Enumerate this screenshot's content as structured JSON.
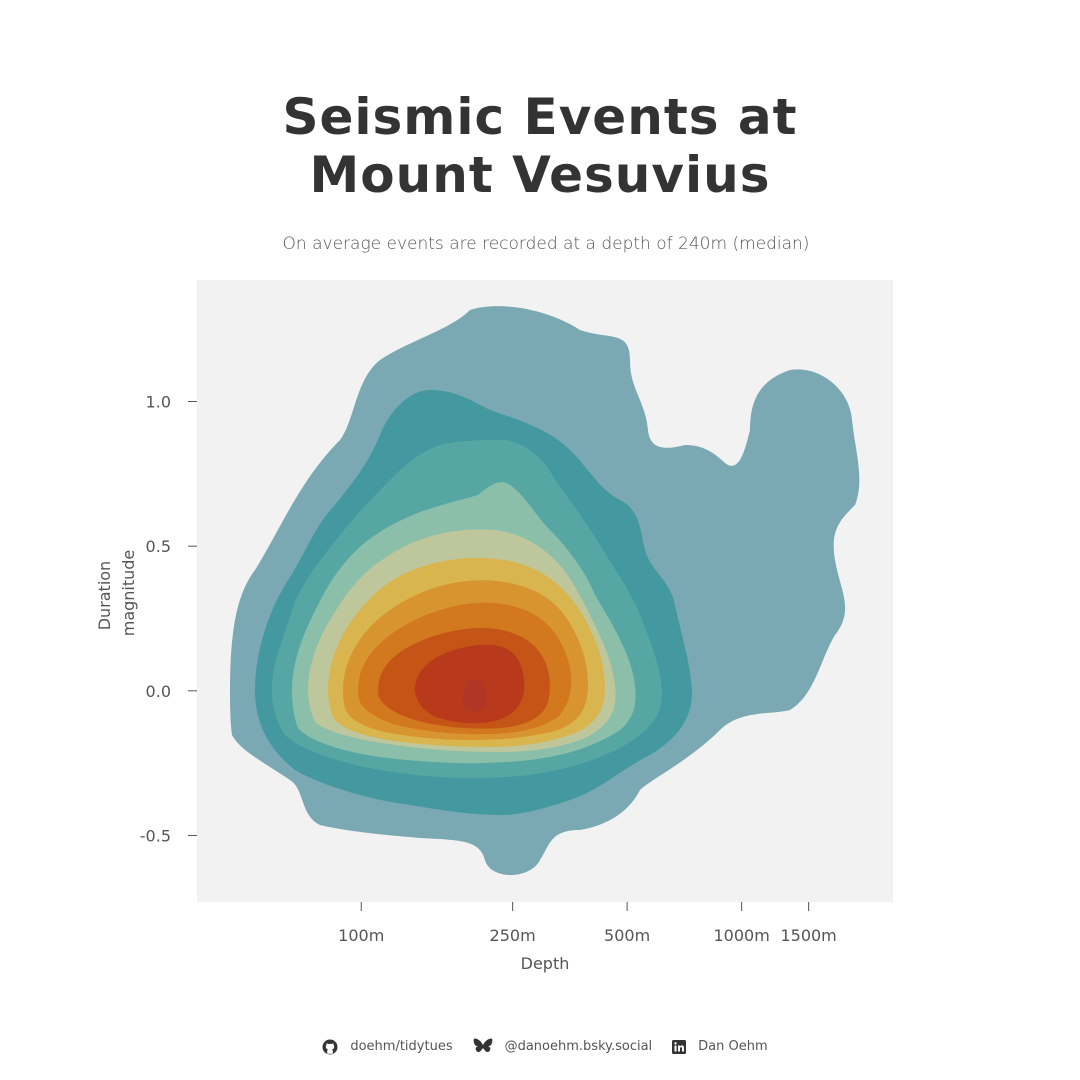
{
  "title_line1": "Seismic Events at",
  "title_line2": "Mount Vesuvius",
  "subtitle": "On average events are recorded at a depth of 240m (median)",
  "chart_data": {
    "type": "density-contour",
    "xlabel": "Depth",
    "ylabel": "Duration\nmagnitude",
    "x_scale": "log",
    "x_ticks": [
      {
        "value": 100,
        "label": "100m"
      },
      {
        "value": 250,
        "label": "250m"
      },
      {
        "value": 500,
        "label": "500m"
      },
      {
        "value": 1000,
        "label": "1000m"
      },
      {
        "value": 1500,
        "label": "1500m"
      }
    ],
    "y_ticks": [
      {
        "value": 1.0,
        "label": "1.0"
      },
      {
        "value": 0.5,
        "label": "0.5"
      },
      {
        "value": 0.0,
        "label": "0.0"
      },
      {
        "value": -0.5,
        "label": "-0.5"
      }
    ],
    "xlim": [
      37,
      2500
    ],
    "ylim": [
      -0.73,
      1.42
    ],
    "density_peak": {
      "x": 225,
      "y": 0.0
    },
    "level_colors": [
      "#7aa9b4",
      "#43999f",
      "#56a7a4",
      "#8bbfaa",
      "#bdc79b",
      "#d9b550",
      "#d8952f",
      "#d2781e",
      "#c45516",
      "#b8391b",
      "#b23626"
    ],
    "background": "#f2f2f2"
  },
  "footer": {
    "github": "doehm/tidytues",
    "bluesky": "@danoehm.bsky.social",
    "linkedin": "Dan Oehm"
  }
}
